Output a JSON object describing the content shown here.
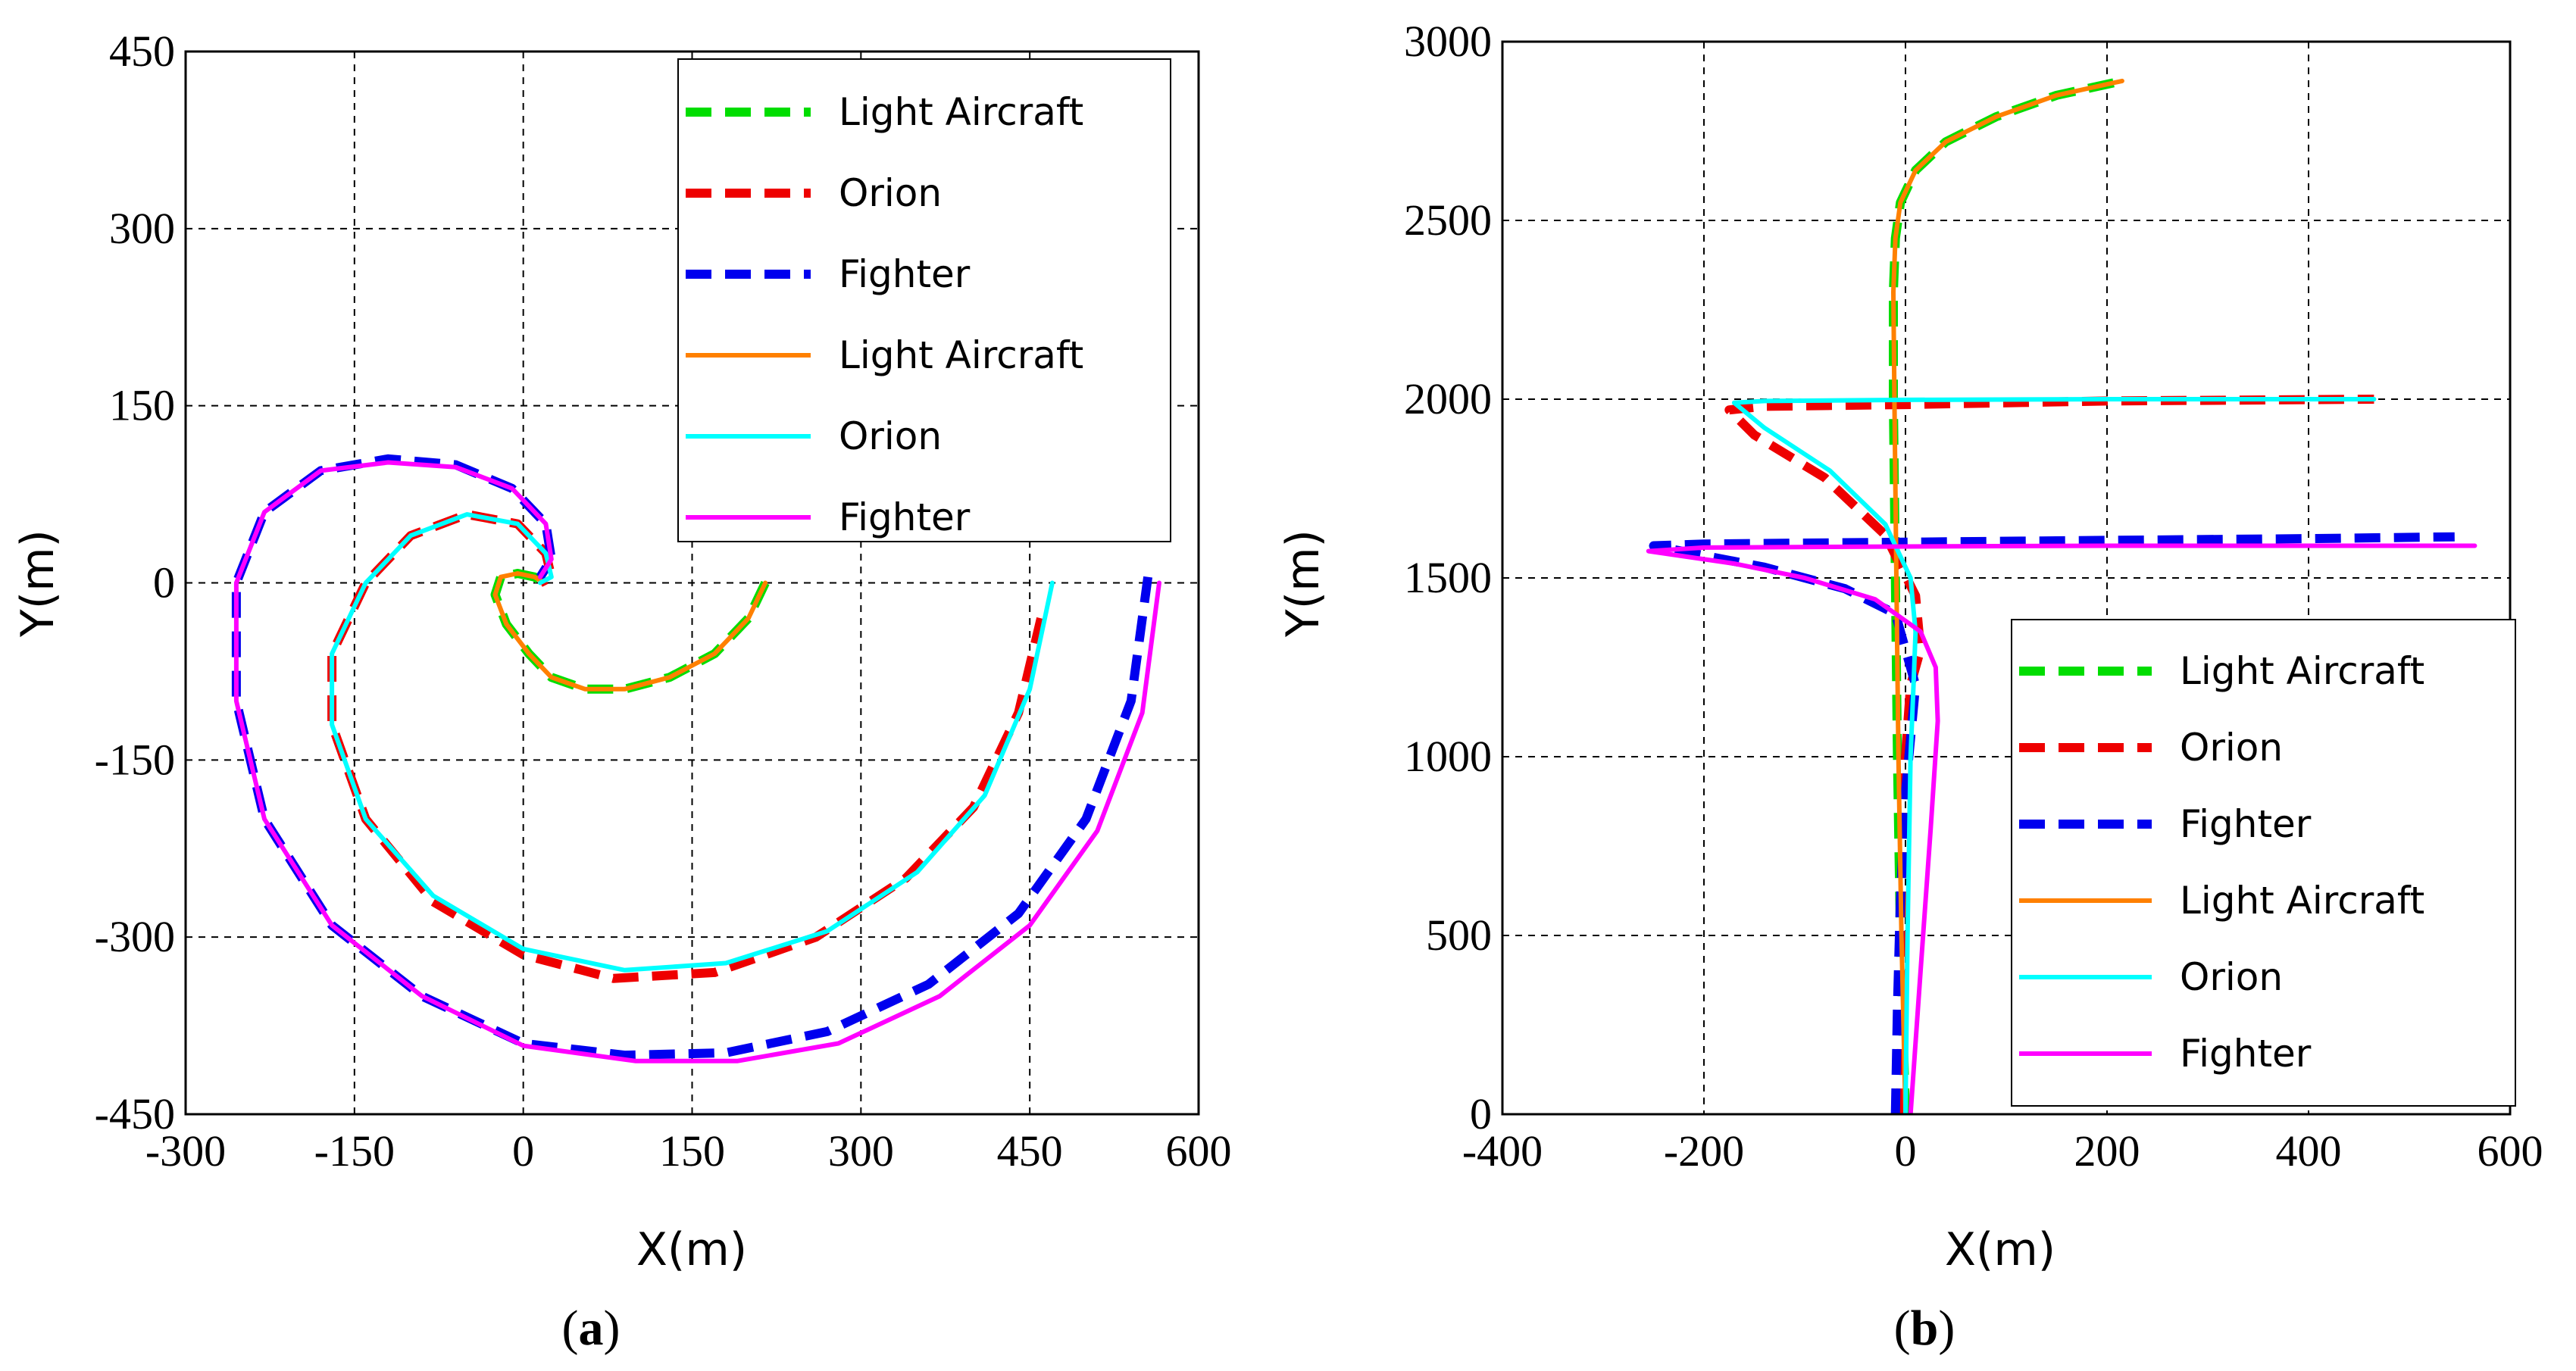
{
  "colors": {
    "light_aircraft_ref": "#00dd00",
    "orion_ref": "#ee0000",
    "fighter_ref": "#0000ee",
    "light_aircraft": "#ff8000",
    "orion": "#00ffff",
    "fighter": "#ff00ff"
  },
  "chart_data": [
    {
      "panel": "(a)",
      "panel_letter": "a",
      "type": "line",
      "xlabel": "X(m)",
      "ylabel": "Y(m)",
      "xlim": [
        -300,
        600
      ],
      "ylim": [
        -450,
        450
      ],
      "xticks": [
        -300,
        -150,
        0,
        150,
        300,
        450,
        600
      ],
      "xtick_labels": [
        "-300",
        "-150",
        "0",
        "150",
        "300",
        "450",
        "600"
      ],
      "yticks": [
        -450,
        -300,
        -150,
        0,
        150,
        300,
        450
      ],
      "ytick_labels": [
        "-450",
        "-300",
        "-150",
        "0",
        "150",
        "300",
        "450"
      ],
      "grid": true,
      "legend_position": "top-right",
      "series": [
        {
          "name": "Light Aircraft",
          "style": "dashed",
          "color_key": "light_aircraft_ref",
          "x": [
            215,
            200,
            170,
            130,
            90,
            55,
            25,
            5,
            -15,
            -25,
            -20,
            -5,
            10,
            15
          ],
          "y": [
            0,
            -30,
            -60,
            -80,
            -90,
            -90,
            -80,
            -60,
            -35,
            -10,
            5,
            8,
            5,
            2
          ]
        },
        {
          "name": "Orion",
          "style": "dashed",
          "color_key": "orion_ref",
          "x": [
            460,
            440,
            400,
            340,
            260,
            170,
            80,
            0,
            -80,
            -140,
            -170,
            -170,
            -140,
            -100,
            -50,
            -5,
            20,
            25,
            15
          ],
          "y": [
            -30,
            -110,
            -190,
            -250,
            -300,
            -330,
            -335,
            -315,
            -270,
            -200,
            -120,
            -60,
            0,
            40,
            58,
            50,
            25,
            5,
            0
          ]
        },
        {
          "name": "Fighter",
          "style": "dashed",
          "color_key": "fighter_ref",
          "x": [
            555,
            540,
            500,
            440,
            360,
            270,
            180,
            90,
            0,
            -90,
            -170,
            -230,
            -255,
            -255,
            -230,
            -180,
            -120,
            -60,
            -10,
            20,
            25,
            15
          ],
          "y": [
            5,
            -100,
            -200,
            -280,
            -340,
            -380,
            -398,
            -400,
            -390,
            -350,
            -290,
            -200,
            -100,
            0,
            60,
            95,
            105,
            100,
            80,
            50,
            20,
            5
          ]
        },
        {
          "name": "Light Aircraft",
          "style": "solid",
          "color_key": "light_aircraft",
          "x": [
            215,
            200,
            170,
            130,
            90,
            55,
            25,
            5,
            -15,
            -25,
            -20,
            -5,
            10,
            15
          ],
          "y": [
            0,
            -30,
            -60,
            -80,
            -90,
            -90,
            -80,
            -60,
            -35,
            -10,
            5,
            8,
            5,
            2
          ]
        },
        {
          "name": "Orion",
          "style": "solid",
          "color_key": "orion",
          "x": [
            470,
            450,
            410,
            350,
            270,
            180,
            90,
            0,
            -80,
            -140,
            -170,
            -170,
            -140,
            -100,
            -50,
            -5,
            20,
            25,
            15
          ],
          "y": [
            0,
            -90,
            -180,
            -245,
            -295,
            -322,
            -328,
            -310,
            -265,
            -200,
            -120,
            -60,
            0,
            40,
            58,
            50,
            25,
            5,
            0
          ]
        },
        {
          "name": "Fighter",
          "style": "solid",
          "color_key": "fighter",
          "x": [
            565,
            550,
            510,
            450,
            370,
            280,
            190,
            100,
            0,
            -90,
            -170,
            -230,
            -255,
            -255,
            -230,
            -180,
            -120,
            -60,
            -10,
            20,
            25,
            15
          ],
          "y": [
            0,
            -110,
            -210,
            -290,
            -350,
            -390,
            -405,
            -405,
            -392,
            -350,
            -290,
            -200,
            -100,
            0,
            60,
            95,
            102,
            98,
            80,
            50,
            20,
            5
          ]
        }
      ]
    },
    {
      "panel": "(b)",
      "panel_letter": "b",
      "type": "line",
      "xlabel": "X(m)",
      "ylabel": "Y(m)",
      "xlim": [
        -400,
        600
      ],
      "ylim": [
        0,
        3000
      ],
      "xticks": [
        -400,
        -200,
        0,
        200,
        400,
        600
      ],
      "xtick_labels": [
        "-400",
        "-200",
        "0",
        "200",
        "400",
        "600"
      ],
      "yticks": [
        0,
        500,
        1000,
        1500,
        2000,
        2500,
        3000
      ],
      "ytick_labels": [
        "0",
        "500",
        "1000",
        "1500",
        "2000",
        "2500",
        "3000"
      ],
      "grid": true,
      "legend_position": "bottom-right",
      "series": [
        {
          "name": "Light Aircraft",
          "style": "dashed",
          "color_key": "light_aircraft_ref",
          "x": [
            0,
            -5,
            -8,
            -10,
            -12,
            -12,
            -10,
            -5,
            10,
            40,
            90,
            150,
            215
          ],
          "y": [
            0,
            500,
            1000,
            1500,
            2000,
            2300,
            2450,
            2550,
            2640,
            2720,
            2790,
            2850,
            2890
          ]
        },
        {
          "name": "Orion",
          "style": "dashed",
          "color_key": "orion_ref",
          "x": [
            -5,
            -3,
            0,
            5,
            15,
            10,
            -20,
            -80,
            -150,
            -175,
            -140,
            0,
            200,
            465
          ],
          "y": [
            0,
            500,
            1000,
            1200,
            1300,
            1450,
            1620,
            1780,
            1900,
            1970,
            1980,
            1985,
            1995,
            2000
          ]
        },
        {
          "name": "Fighter",
          "style": "dashed",
          "color_key": "fighter_ref",
          "x": [
            -10,
            -8,
            -5,
            0,
            10,
            -10,
            -60,
            -140,
            -250,
            -200,
            0,
            200,
            400,
            545
          ],
          "y": [
            0,
            300,
            600,
            900,
            1200,
            1400,
            1470,
            1530,
            1590,
            1595,
            1600,
            1605,
            1610,
            1615
          ]
        },
        {
          "name": "Light Aircraft",
          "style": "solid",
          "color_key": "light_aircraft",
          "x": [
            0,
            -4,
            -7,
            -9,
            -11,
            -12,
            -10,
            -5,
            10,
            40,
            90,
            150,
            215
          ],
          "y": [
            0,
            500,
            1000,
            1500,
            2000,
            2300,
            2450,
            2550,
            2640,
            2720,
            2790,
            2850,
            2890
          ]
        },
        {
          "name": "Orion",
          "style": "solid",
          "color_key": "orion",
          "x": [
            0,
            2,
            5,
            8,
            10,
            5,
            -20,
            -75,
            -140,
            -170,
            -140,
            0,
            200,
            465
          ],
          "y": [
            0,
            500,
            1000,
            1200,
            1350,
            1500,
            1650,
            1800,
            1920,
            1990,
            1995,
            1998,
            2000,
            2000
          ]
        },
        {
          "name": "Fighter",
          "style": "solid",
          "color_key": "fighter",
          "x": [
            5,
            15,
            25,
            32,
            30,
            15,
            -30,
            -100,
            -170,
            -255,
            -200,
            0,
            200,
            400,
            565
          ],
          "y": [
            0,
            400,
            800,
            1100,
            1250,
            1350,
            1440,
            1500,
            1540,
            1575,
            1585,
            1588,
            1590,
            1590,
            1590
          ]
        }
      ]
    }
  ]
}
